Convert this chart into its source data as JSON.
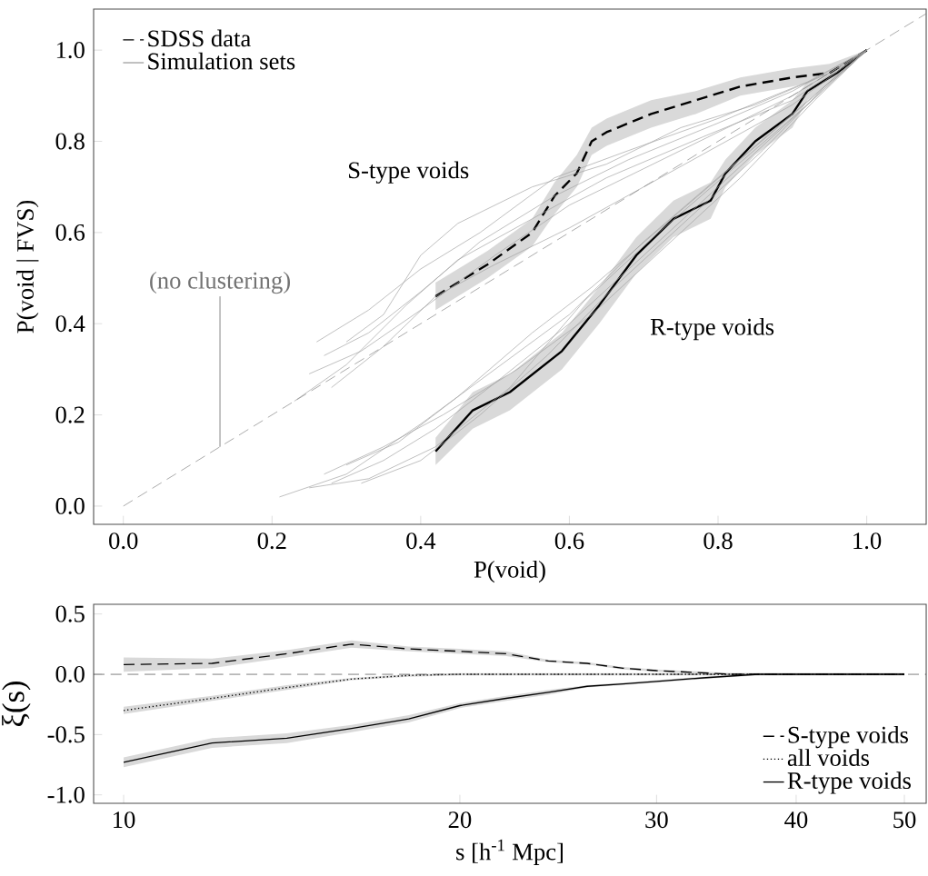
{
  "chart_data": [
    {
      "type": "line",
      "xlabel": "P(void)",
      "ylabel": "P(void | FVS)",
      "xlim": [
        -0.04,
        1.08
      ],
      "ylim": [
        -0.04,
        1.09
      ],
      "xticks": [
        {
          "value": 0,
          "label": "0.0"
        },
        0.2,
        0.4,
        0.6,
        0.8,
        {
          "value": 1,
          "label": "1.0"
        }
      ],
      "yticks": [
        {
          "value": 0,
          "label": "0.0"
        },
        0.2,
        0.4,
        0.6,
        0.8,
        {
          "value": 1,
          "label": "1.0"
        }
      ],
      "legend": "top left",
      "annotations": [
        {
          "text": "(no clustering)",
          "x": 0.13,
          "y": 0.13
        },
        "S-type voids",
        "R-type voids"
      ],
      "series": [
        {
          "name": "SDSS data",
          "color": "#000000",
          "line_style": "dashed",
          "x": [
            0.42,
            0.49,
            0.55,
            0.58,
            0.61,
            0.63,
            0.65,
            0.71,
            0.77,
            0.83,
            0.9,
            0.95,
            1.0
          ],
          "values": [
            0.46,
            0.53,
            0.6,
            0.68,
            0.73,
            0.8,
            0.82,
            0.86,
            0.89,
            0.92,
            0.94,
            0.95,
            1.0
          ],
          "lower": [
            0.43,
            0.5,
            0.57,
            0.64,
            0.7,
            0.77,
            0.79,
            0.83,
            0.86,
            0.9,
            0.92,
            0.94,
            1.0
          ],
          "upper": [
            0.49,
            0.56,
            0.63,
            0.71,
            0.77,
            0.83,
            0.85,
            0.89,
            0.91,
            0.94,
            0.96,
            0.97,
            1.0
          ]
        },
        {
          "color": "#000000",
          "line_style": "solid",
          "x": [
            0.42,
            0.47,
            0.52,
            0.59,
            0.64,
            0.69,
            0.74,
            0.79,
            0.81,
            0.85,
            0.9,
            0.92,
            0.96,
            1.0
          ],
          "values": [
            0.12,
            0.21,
            0.25,
            0.34,
            0.44,
            0.55,
            0.63,
            0.67,
            0.73,
            0.8,
            0.86,
            0.91,
            0.95,
            1.0
          ],
          "lower": [
            0.09,
            0.17,
            0.21,
            0.3,
            0.4,
            0.51,
            0.59,
            0.63,
            0.7,
            0.77,
            0.83,
            0.89,
            0.94,
            1.0
          ],
          "upper": [
            0.15,
            0.25,
            0.29,
            0.38,
            0.48,
            0.59,
            0.67,
            0.71,
            0.76,
            0.83,
            0.89,
            0.93,
            0.96,
            1.0
          ]
        },
        {
          "name": "Simulation sets",
          "color": "#a0a0a0",
          "line_style": "solid",
          "x": [
            0.3,
            0.35,
            0.4,
            0.45,
            0.55,
            0.65,
            0.75,
            0.85,
            0.95,
            1.0
          ],
          "values": [
            0.36,
            0.42,
            0.55,
            0.62,
            0.7,
            0.75,
            0.83,
            0.88,
            0.95,
            1.0
          ]
        },
        {
          "color": "#a0a0a0",
          "line_style": "solid",
          "x": [
            0.27,
            0.33,
            0.4,
            0.48,
            0.58,
            0.68,
            0.8,
            0.9,
            1.0
          ],
          "values": [
            0.33,
            0.38,
            0.47,
            0.58,
            0.68,
            0.76,
            0.84,
            0.91,
            1.0
          ]
        },
        {
          "color": "#a0a0a0",
          "line_style": "solid",
          "x": [
            0.25,
            0.32,
            0.4,
            0.5,
            0.6,
            0.7,
            0.8,
            0.9,
            1.0
          ],
          "values": [
            0.29,
            0.34,
            0.43,
            0.55,
            0.66,
            0.74,
            0.82,
            0.9,
            1.0
          ]
        },
        {
          "color": "#a0a0a0",
          "line_style": "solid",
          "x": [
            0.23,
            0.3,
            0.38,
            0.45,
            0.55,
            0.65,
            0.78,
            0.9,
            1.0
          ],
          "values": [
            0.23,
            0.31,
            0.44,
            0.54,
            0.63,
            0.72,
            0.81,
            0.89,
            1.0
          ]
        },
        {
          "color": "#a0a0a0",
          "line_style": "solid",
          "x": [
            0.28,
            0.35,
            0.42,
            0.5,
            0.6,
            0.7,
            0.8,
            0.9,
            1.0
          ],
          "values": [
            0.26,
            0.35,
            0.46,
            0.53,
            0.61,
            0.7,
            0.79,
            0.88,
            1.0
          ]
        },
        {
          "color": "#a0a0a0",
          "line_style": "solid",
          "x": [
            0.26,
            0.33,
            0.4,
            0.48,
            0.58,
            0.68,
            0.8,
            0.92,
            1.0
          ],
          "values": [
            0.36,
            0.43,
            0.52,
            0.6,
            0.72,
            0.78,
            0.85,
            0.93,
            1.0
          ]
        },
        {
          "color": "#a0a0a0",
          "line_style": "solid",
          "x": [
            0.21,
            0.3,
            0.4,
            0.5,
            0.6,
            0.7,
            0.8,
            0.9,
            1.0
          ],
          "values": [
            0.02,
            0.07,
            0.18,
            0.3,
            0.42,
            0.58,
            0.72,
            0.86,
            1.0
          ]
        },
        {
          "color": "#a0a0a0",
          "line_style": "solid",
          "x": [
            0.28,
            0.35,
            0.42,
            0.5,
            0.6,
            0.7,
            0.8,
            0.9,
            1.0
          ],
          "values": [
            0.05,
            0.1,
            0.17,
            0.27,
            0.4,
            0.55,
            0.7,
            0.85,
            1.0
          ]
        },
        {
          "color": "#a0a0a0",
          "line_style": "solid",
          "x": [
            0.25,
            0.33,
            0.42,
            0.52,
            0.62,
            0.72,
            0.82,
            0.92,
            1.0
          ],
          "values": [
            0.04,
            0.06,
            0.13,
            0.26,
            0.45,
            0.6,
            0.74,
            0.88,
            1.0
          ]
        },
        {
          "color": "#a0a0a0",
          "line_style": "solid",
          "x": [
            0.3,
            0.37,
            0.45,
            0.55,
            0.63,
            0.73,
            0.83,
            0.93,
            1.0
          ],
          "values": [
            0.09,
            0.14,
            0.24,
            0.38,
            0.48,
            0.62,
            0.76,
            0.9,
            1.0
          ]
        },
        {
          "color": "#a0a0a0",
          "line_style": "solid",
          "x": [
            0.27,
            0.35,
            0.43,
            0.53,
            0.63,
            0.73,
            0.83,
            0.93,
            1.0
          ],
          "values": [
            0.07,
            0.13,
            0.2,
            0.3,
            0.42,
            0.57,
            0.72,
            0.89,
            1.0
          ]
        },
        {
          "color": "#a0a0a0",
          "line_style": "solid",
          "x": [
            0.32,
            0.4,
            0.48,
            0.57,
            0.66,
            0.76,
            0.86,
            0.95,
            1.0
          ],
          "values": [
            0.05,
            0.1,
            0.2,
            0.33,
            0.48,
            0.63,
            0.78,
            0.93,
            1.0
          ]
        },
        {
          "color": "#808080",
          "line_style": "dashed",
          "x": [
            0,
            1.08
          ],
          "values": [
            0,
            1.08
          ]
        }
      ]
    },
    {
      "type": "line",
      "xlabel": "s [h$^{-1}$ Mpc]",
      "ylabel": "ξ(s)",
      "log": "x",
      "xlim": [
        9.4,
        52.3
      ],
      "ylim": [
        -1.07,
        0.58
      ],
      "xticks": [
        10,
        20,
        30,
        40,
        50
      ],
      "yticks": [
        0.5,
        {
          "value": 0,
          "label": "0.0"
        },
        -0.5,
        {
          "value": -1,
          "label": "-1.0"
        }
      ],
      "legend": "bottom right",
      "ref_lines": [
        {
          "axis": "y",
          "value": 0,
          "color": "#000000",
          "line_style": "dashed"
        }
      ],
      "series": [
        {
          "name": "S-type voids",
          "color": "#000000",
          "line_style": "dashed",
          "x": [
            10,
            12,
            14,
            16,
            18,
            20,
            22,
            24,
            26,
            28,
            30,
            35,
            40,
            50
          ],
          "values": [
            0.08,
            0.09,
            0.17,
            0.25,
            0.21,
            0.19,
            0.17,
            0.11,
            0.09,
            0.05,
            0.03,
            0.0,
            0.0,
            0.0
          ],
          "lower": [
            0.02,
            0.05,
            0.14,
            0.22,
            0.19,
            0.17,
            0.15,
            0.1,
            0.08,
            0.04,
            0.02,
            -0.01,
            -0.01,
            -0.01
          ],
          "upper": [
            0.14,
            0.13,
            0.2,
            0.28,
            0.23,
            0.21,
            0.19,
            0.12,
            0.1,
            0.06,
            0.04,
            0.01,
            0.01,
            0.01
          ]
        },
        {
          "name": "all voids",
          "color": "#000000",
          "line_style": "dotted",
          "x": [
            10,
            12,
            14,
            16,
            18,
            20,
            30,
            40,
            50
          ],
          "values": [
            -0.3,
            -0.2,
            -0.11,
            -0.04,
            -0.01,
            0.0,
            0.0,
            0.0,
            0.0
          ],
          "lower": [
            -0.33,
            -0.22,
            -0.13,
            -0.05,
            -0.02,
            -0.01,
            -0.01,
            -0.01,
            -0.01
          ],
          "upper": [
            -0.27,
            -0.18,
            -0.09,
            -0.03,
            0.0,
            0.01,
            0.01,
            0.01,
            0.01
          ]
        },
        {
          "name": "R-type voids",
          "color": "#000000",
          "line_style": "solid",
          "x": [
            10,
            12,
            14,
            16,
            18,
            20,
            22,
            24,
            26,
            28,
            30,
            33,
            37,
            50
          ],
          "values": [
            -0.73,
            -0.57,
            -0.53,
            -0.45,
            -0.37,
            -0.26,
            -0.2,
            -0.15,
            -0.1,
            -0.08,
            -0.06,
            -0.03,
            0.0,
            0.0
          ],
          "lower": [
            -0.77,
            -0.61,
            -0.57,
            -0.48,
            -0.4,
            -0.28,
            -0.22,
            -0.17,
            -0.11,
            -0.09,
            -0.07,
            -0.04,
            -0.01,
            -0.01
          ],
          "upper": [
            -0.69,
            -0.53,
            -0.49,
            -0.42,
            -0.34,
            -0.24,
            -0.18,
            -0.13,
            -0.09,
            -0.07,
            -0.05,
            -0.02,
            0.01,
            0.01
          ]
        }
      ]
    }
  ]
}
